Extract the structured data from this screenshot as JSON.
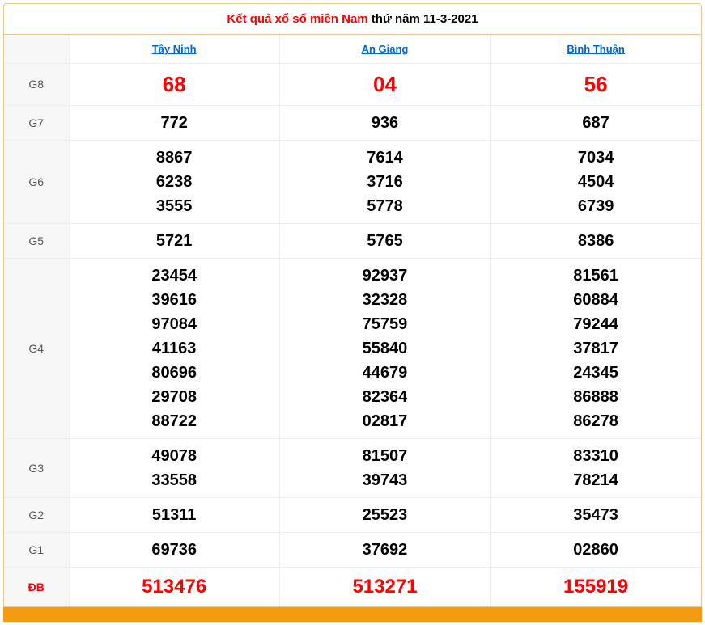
{
  "title": {
    "red_part": "Kết quả xổ số miền Nam",
    "black_part": " thứ năm 11-3-2021"
  },
  "provinces": [
    "Tây Ninh",
    "An Giang",
    "Bình Thuận"
  ],
  "prizes": {
    "G8": {
      "label": "G8",
      "values": [
        "68",
        "04",
        "56"
      ]
    },
    "G7": {
      "label": "G7",
      "values": [
        "772",
        "936",
        "687"
      ]
    },
    "G6": {
      "label": "G6",
      "values": [
        "8867\n6238\n3555",
        "7614\n3716\n5778",
        "7034\n4504\n6739"
      ]
    },
    "G5": {
      "label": "G5",
      "values": [
        "5721",
        "5765",
        "8386"
      ]
    },
    "G4": {
      "label": "G4",
      "values": [
        "23454\n39616\n97084\n41163\n80696\n29708\n88722",
        "92937\n32328\n75759\n55840\n44679\n82364\n02817",
        "81561\n60884\n79244\n37817\n24345\n86888\n86278"
      ]
    },
    "G3": {
      "label": "G3",
      "values": [
        "49078\n33558",
        "81507\n39743",
        "83310\n78214"
      ]
    },
    "G2": {
      "label": "G2",
      "values": [
        "51311",
        "25523",
        "35473"
      ]
    },
    "G1": {
      "label": "G1",
      "values": [
        "69736",
        "37692",
        "02860"
      ]
    },
    "DB": {
      "label": "ĐB",
      "values": [
        "513476",
        "513271",
        "155919"
      ]
    }
  },
  "style": {
    "border_color": "#e8c89a",
    "grid_color": "#eeeeee",
    "label_bg": "#f7f7f7",
    "link_color": "#0066cc",
    "red": "#ff0000",
    "footer_bg": "#f39c12",
    "body_font_size": 20,
    "g8_font_size": 26,
    "db_font_size": 24,
    "header_font_size": 13,
    "label_font_size": 14
  }
}
